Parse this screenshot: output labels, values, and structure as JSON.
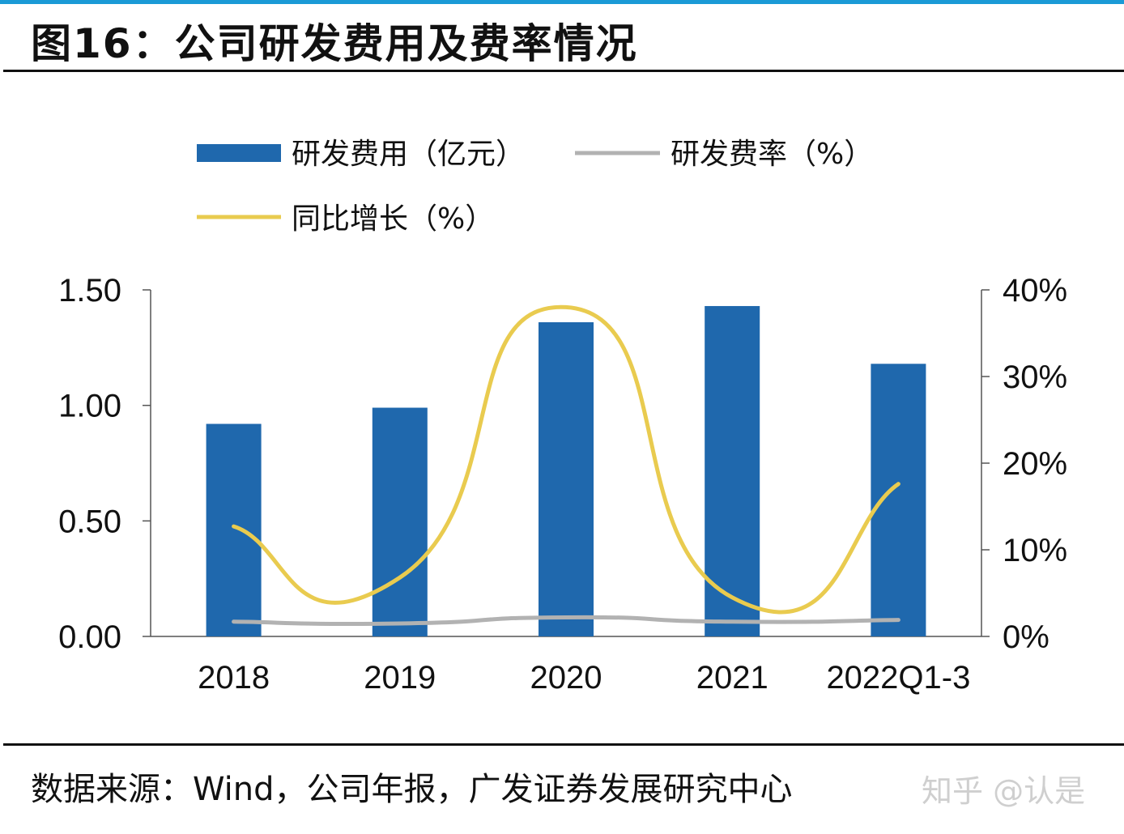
{
  "figure": {
    "title": "图16：公司研发费用及费率情况",
    "source": "数据来源：Wind，公司年报，广发证券发展研究中心",
    "watermark": "知乎 @认是"
  },
  "colors": {
    "accent_rule": "#1a9ad6",
    "bar": "#1f68ad",
    "rate_line": "#b2b2b2",
    "growth_line": "#e9cb4f"
  },
  "chart_data": {
    "type": "bar",
    "categories": [
      "2018",
      "2019",
      "2020",
      "2021",
      "2022Q1-3"
    ],
    "series": [
      {
        "name": "研发费用（亿元）",
        "type": "bar",
        "axis": "left",
        "values": [
          0.92,
          0.99,
          1.36,
          1.43,
          1.18
        ]
      },
      {
        "name": "研发费率（%）",
        "type": "line",
        "axis": "right",
        "values": [
          1.7,
          1.5,
          2.2,
          1.7,
          1.9
        ]
      },
      {
        "name": "同比增长（%）",
        "type": "line",
        "axis": "right",
        "values": [
          12.7,
          6.8,
          38.0,
          4.5,
          17.6
        ]
      }
    ],
    "left_axis": {
      "ylim": [
        0,
        1.5
      ],
      "ticks": [
        "0.00",
        "0.50",
        "1.00",
        "1.50"
      ]
    },
    "right_axis": {
      "ylim": [
        0,
        40
      ],
      "ticks": [
        "0%",
        "10%",
        "20%",
        "30%",
        "40%"
      ]
    },
    "legend_position": "top"
  }
}
